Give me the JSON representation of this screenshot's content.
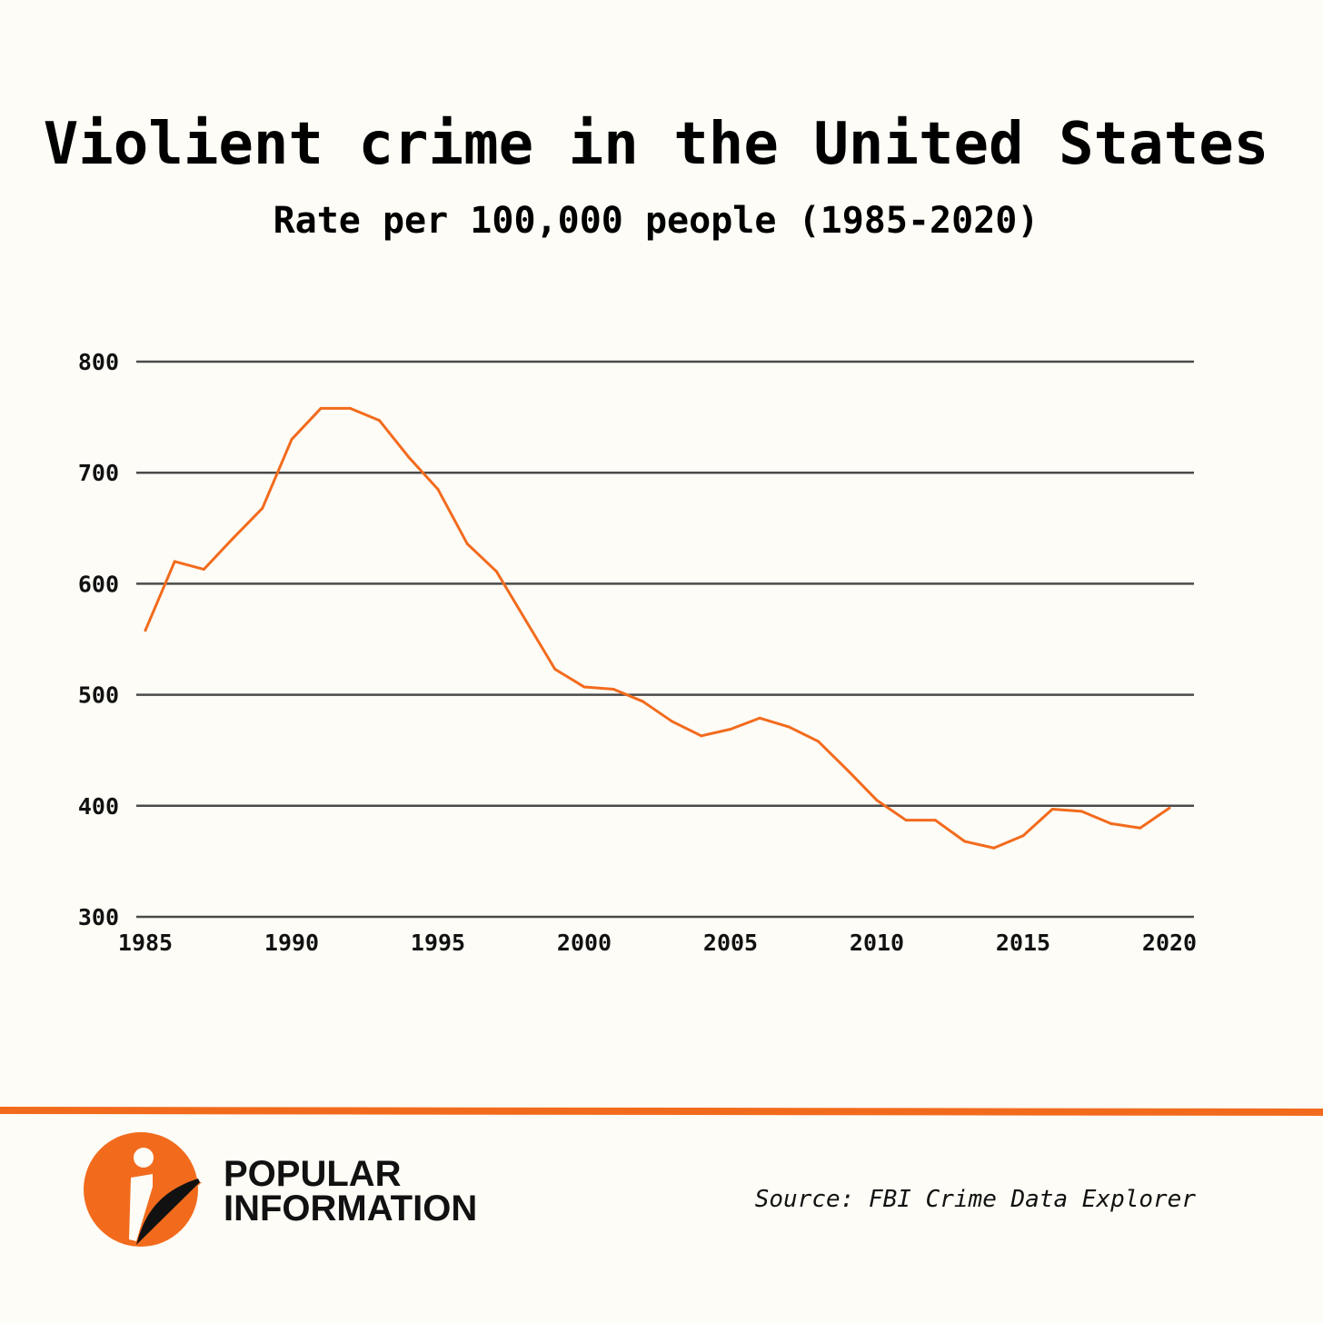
{
  "chart_data": {
    "type": "line",
    "title": "Violient crime in the United States",
    "subtitle": "Rate per 100,000 people (1985-2020)",
    "x": [
      1985,
      1986,
      1987,
      1988,
      1989,
      1990,
      1991,
      1992,
      1993,
      1994,
      1995,
      1996,
      1997,
      1998,
      1999,
      2000,
      2001,
      2002,
      2003,
      2004,
      2005,
      2006,
      2007,
      2008,
      2009,
      2010,
      2011,
      2012,
      2013,
      2014,
      2015,
      2016,
      2017,
      2018,
      2019,
      2020
    ],
    "series": [
      {
        "values": [
          558,
          620,
          613,
          641,
          668,
          730,
          758,
          758,
          747,
          714,
          685,
          636,
          611,
          567,
          523,
          507,
          505,
          494,
          476,
          463,
          469,
          479,
          471,
          458,
          432,
          405,
          387,
          387,
          368,
          362,
          373,
          397,
          395,
          384,
          380,
          398
        ]
      }
    ],
    "xticks": [
      "1985",
      "1990",
      "1995",
      "2000",
      "2005",
      "2010",
      "2015",
      "2020"
    ],
    "yticks": [
      "800",
      "700",
      "600",
      "500",
      "400",
      "300"
    ],
    "ylim": [
      300,
      800
    ],
    "xlim": [
      1985,
      2020
    ],
    "grid": true,
    "line_color": "#f26b1d",
    "grid_color": "#4a4a4a"
  },
  "footer": {
    "brand_line1": "POPULAR",
    "brand_line2": "INFORMATION",
    "source": "Source: FBI Crime Data Explorer",
    "accent_color": "#f26b1d"
  }
}
